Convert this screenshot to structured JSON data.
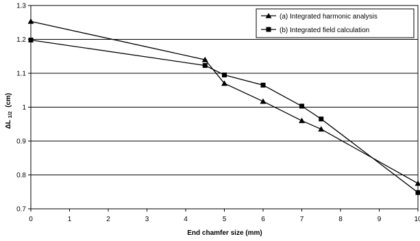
{
  "chart_data": {
    "type": "line",
    "xlabel": "End chamfer size (mm)",
    "ylabel_main": "ΔL",
    "ylabel_sub": "1/2",
    "ylabel_unit": "(cm)",
    "xlim": [
      0,
      10
    ],
    "ylim": [
      0.7,
      1.3
    ],
    "x_ticks": [
      "0",
      "1",
      "2",
      "3",
      "4",
      "5",
      "6",
      "7",
      "8",
      "9",
      "10"
    ],
    "y_ticks": [
      "0.7",
      "0.8",
      "0.9",
      "1",
      "1.1",
      "1.2",
      "1.3"
    ],
    "grid": "horizontal",
    "legend_position": "top-right",
    "series": [
      {
        "name": "(a) Integrated harmonic analysis",
        "marker": "triangle",
        "color": "#000000",
        "x": [
          0,
          4.5,
          5,
          6,
          7,
          7.5,
          10
        ],
        "y": [
          1.253,
          1.14,
          1.07,
          1.017,
          0.96,
          0.935,
          0.775
        ]
      },
      {
        "name": "(b) Integrated field calculation",
        "marker": "square",
        "color": "#000000",
        "x": [
          0,
          4.5,
          5,
          6,
          7,
          7.5,
          10
        ],
        "y": [
          1.198,
          1.123,
          1.095,
          1.065,
          1.003,
          0.965,
          0.748
        ]
      }
    ]
  }
}
